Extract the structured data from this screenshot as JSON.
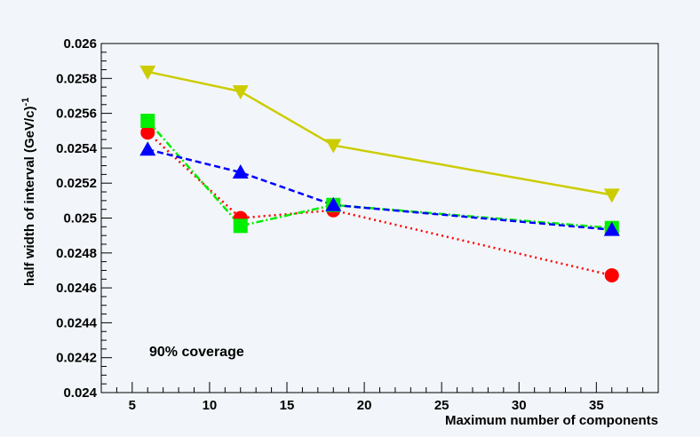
{
  "chart_data": {
    "type": "line",
    "title": "",
    "xlabel": "Maximum number of components",
    "ylabel_main": "half width of interval (GeV/c)",
    "ylabel_exp": "-1",
    "annotation": "90% coverage",
    "xlim": [
      3,
      39
    ],
    "ylim": [
      0.024,
      0.026
    ],
    "x_major_ticks": [
      5,
      10,
      15,
      20,
      25,
      30,
      35
    ],
    "x_tick_labels": [
      "5",
      "10",
      "15",
      "20",
      "25",
      "30",
      "35"
    ],
    "y_major_ticks": [
      0.024,
      0.0242,
      0.0244,
      0.0246,
      0.0248,
      0.025,
      0.0252,
      0.0254,
      0.0256,
      0.0258,
      0.026
    ],
    "y_tick_labels": [
      "0.024",
      "0.0242",
      "0.0244",
      "0.0246",
      "0.0248",
      "0.025",
      "0.0252",
      "0.0254",
      "0.0256",
      "0.0258",
      "0.026"
    ],
    "grid": false,
    "legend": "none",
    "series": [
      {
        "name": "red-circles",
        "color": "#ff0000",
        "marker": "circle",
        "dash": "dotted",
        "x": [
          6,
          12,
          18,
          36
        ],
        "y": [
          0.02549,
          0.025,
          0.025045,
          0.024672
        ]
      },
      {
        "name": "green-squares",
        "color": "#00ee00",
        "marker": "square",
        "dash": "dashdot",
        "x": [
          6,
          12,
          18,
          36
        ],
        "y": [
          0.025557,
          0.024955,
          0.025075,
          0.024943
        ]
      },
      {
        "name": "blue-triangles-up",
        "color": "#0000ff",
        "marker": "triangle-up",
        "dash": "dashed",
        "x": [
          6,
          12,
          18,
          36
        ],
        "y": [
          0.025393,
          0.025262,
          0.025075,
          0.024933
        ]
      },
      {
        "name": "yellow-triangles-down",
        "color": "#cccc00",
        "marker": "triangle-down",
        "dash": "solid",
        "x": [
          6,
          12,
          18,
          36
        ],
        "y": [
          0.025838,
          0.025725,
          0.025417,
          0.025133
        ]
      }
    ]
  }
}
